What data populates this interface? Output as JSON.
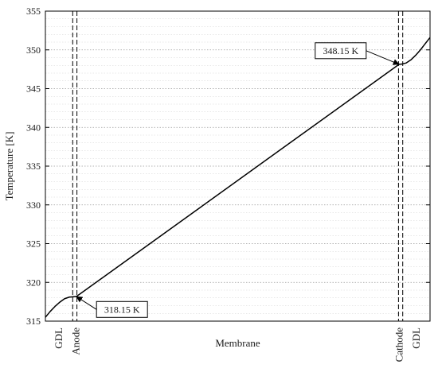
{
  "chart_data": {
    "type": "line",
    "title": "",
    "xlabel": "",
    "ylabel": "Temperature [K]",
    "ylim": [
      315,
      355
    ],
    "yticks": [
      315,
      320,
      325,
      330,
      335,
      340,
      345,
      350,
      355
    ],
    "xlim": [
      0,
      1
    ],
    "grid": {
      "y": true,
      "x": false,
      "minor_y": true
    },
    "legend": "none",
    "series": [
      {
        "x": [
          0.0,
          0.0125,
          0.025,
          0.0375,
          0.05,
          0.0625,
          0.075,
          0.08,
          0.92,
          0.925,
          0.9375,
          0.95,
          0.9625,
          0.975,
          0.9875,
          1.0
        ],
        "y": [
          315.5,
          316.25,
          316.9,
          317.45,
          317.9,
          318.1,
          318.15,
          318.15,
          348.15,
          348.15,
          348.3,
          348.7,
          349.3,
          350.0,
          350.8,
          351.6
        ],
        "color": "#000000"
      }
    ],
    "boundaries": [
      {
        "x": 0.071,
        "style": "dashed"
      },
      {
        "x": 0.082,
        "style": "dashed"
      },
      {
        "x": 0.918,
        "style": "dashed"
      },
      {
        "x": 0.929,
        "style": "dashed"
      }
    ],
    "regions": [
      {
        "label": "GDL",
        "x": 0.035,
        "rotated": true
      },
      {
        "label": "Anode",
        "x": 0.08,
        "rotated": true
      },
      {
        "label": "Membrane",
        "x": 0.5,
        "rotated": false
      },
      {
        "label": "Cathode",
        "x": 0.92,
        "rotated": true
      },
      {
        "label": "GDL",
        "x": 0.965,
        "rotated": true
      }
    ],
    "annotations": [
      {
        "text": "318.15 K",
        "x": 0.077,
        "y": 318.15,
        "box_side": "lower-right"
      },
      {
        "text": "348.15 K",
        "x": 0.923,
        "y": 348.15,
        "box_side": "upper-left"
      }
    ]
  }
}
